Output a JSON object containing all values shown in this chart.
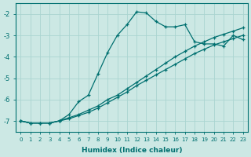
{
  "xlabel": "Humidex (Indice chaleur)",
  "background_color": "#cce8e4",
  "grid_color": "#aad4d0",
  "line_color": "#007070",
  "xlim": [
    -0.5,
    23.5
  ],
  "ylim": [
    -7.5,
    -1.5
  ],
  "yticks": [
    -7,
    -6,
    -5,
    -4,
    -3,
    -2
  ],
  "xticks": [
    0,
    1,
    2,
    3,
    4,
    5,
    6,
    7,
    8,
    9,
    10,
    11,
    12,
    13,
    14,
    15,
    16,
    17,
    18,
    19,
    20,
    21,
    22,
    23
  ],
  "line1_x": [
    0,
    1,
    2,
    3,
    4,
    5,
    6,
    7,
    8,
    9,
    10,
    11,
    12,
    13,
    14,
    15,
    16,
    17,
    18,
    19,
    20,
    21,
    22,
    23
  ],
  "line1_y": [
    -7.0,
    -7.1,
    -7.1,
    -7.1,
    -7.0,
    -6.7,
    -6.1,
    -5.8,
    -4.8,
    -3.8,
    -3.0,
    -2.5,
    -1.9,
    -1.95,
    -2.35,
    -2.6,
    -2.6,
    -2.5,
    -3.3,
    -3.4,
    -3.4,
    -3.5,
    -3.0,
    -3.2
  ],
  "line2_x": [
    0,
    1,
    2,
    3,
    4,
    5,
    6,
    7,
    8,
    9,
    10,
    11,
    12,
    13,
    14,
    15,
    16,
    17,
    18,
    19,
    20,
    21,
    22,
    23
  ],
  "line2_y": [
    -7.0,
    -7.1,
    -7.1,
    -7.1,
    -7.0,
    -6.85,
    -6.7,
    -6.5,
    -6.3,
    -6.0,
    -5.8,
    -5.5,
    -5.2,
    -4.9,
    -4.6,
    -4.3,
    -4.0,
    -3.75,
    -3.5,
    -3.3,
    -3.1,
    -2.95,
    -2.8,
    -2.65
  ],
  "line3_x": [
    0,
    1,
    2,
    3,
    4,
    5,
    6,
    7,
    8,
    9,
    10,
    11,
    12,
    13,
    14,
    15,
    16,
    17,
    18,
    19,
    20,
    21,
    22,
    23
  ],
  "line3_y": [
    -7.0,
    -7.1,
    -7.1,
    -7.1,
    -7.0,
    -6.9,
    -6.75,
    -6.6,
    -6.4,
    -6.15,
    -5.9,
    -5.65,
    -5.35,
    -5.1,
    -4.85,
    -4.6,
    -4.35,
    -4.1,
    -3.85,
    -3.65,
    -3.45,
    -3.3,
    -3.15,
    -3.0
  ]
}
